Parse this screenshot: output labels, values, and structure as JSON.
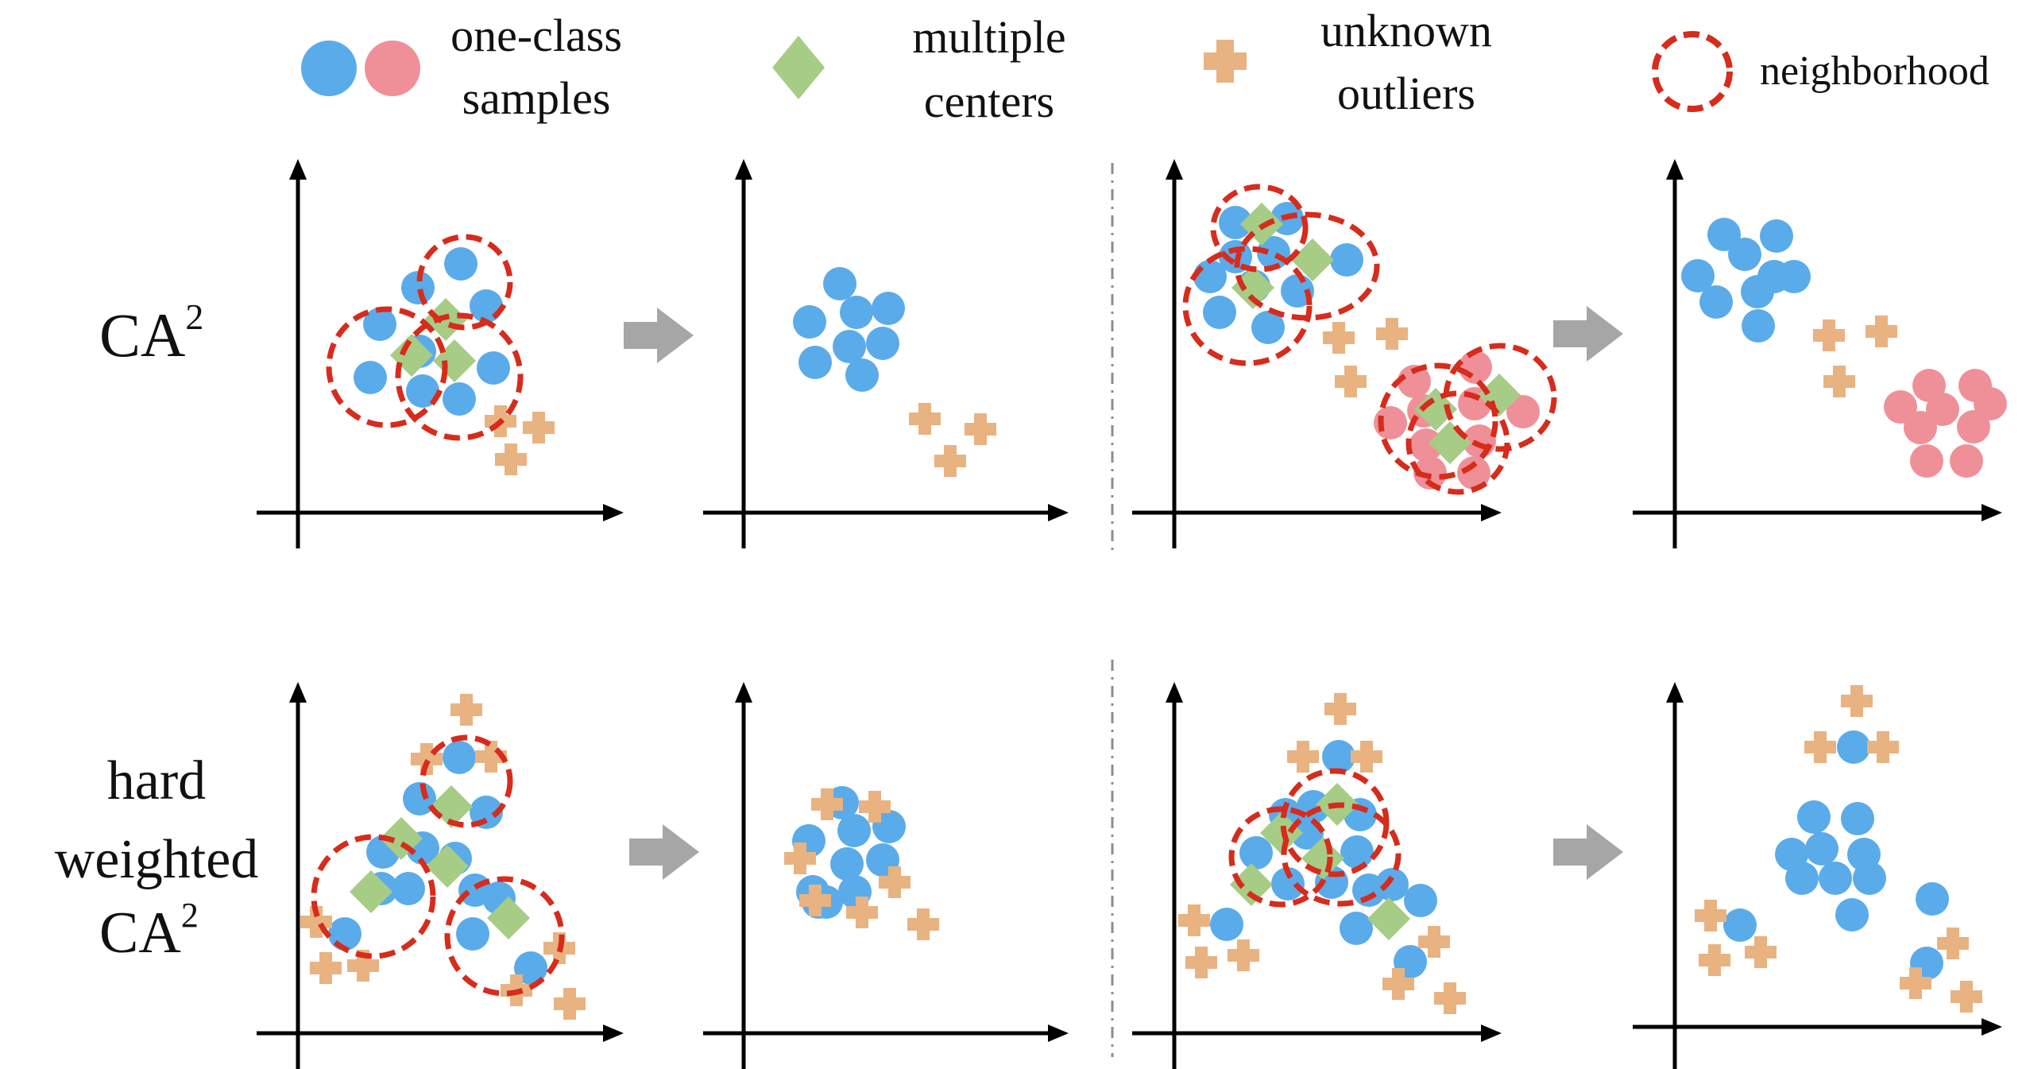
{
  "colors": {
    "blue": "#5aabea",
    "pink": "#ef9098",
    "green": "#a6cc85",
    "orange": "#e9b281",
    "red": "#d72b1c",
    "arrow": "#a6a6a6",
    "axis": "#000000"
  },
  "legend": {
    "one_class": [
      "one-class",
      "samples"
    ],
    "centers": [
      "multiple",
      "centers"
    ],
    "outliers": [
      "unknown",
      "outliers"
    ],
    "neighborhood": "neighborhood"
  },
  "rows": {
    "ca2": {
      "base": "CA",
      "sup": "2"
    },
    "hard": {
      "lines": [
        "hard",
        "weighted"
      ],
      "base": "CA",
      "sup": "2"
    }
  },
  "icons": {
    "sample": "circle-marker",
    "center": "diamond-marker",
    "outlier": "cross-marker",
    "neighborhood": "dashed-circle",
    "transform": "right-arrow",
    "separator": "dash-dot-line"
  }
}
